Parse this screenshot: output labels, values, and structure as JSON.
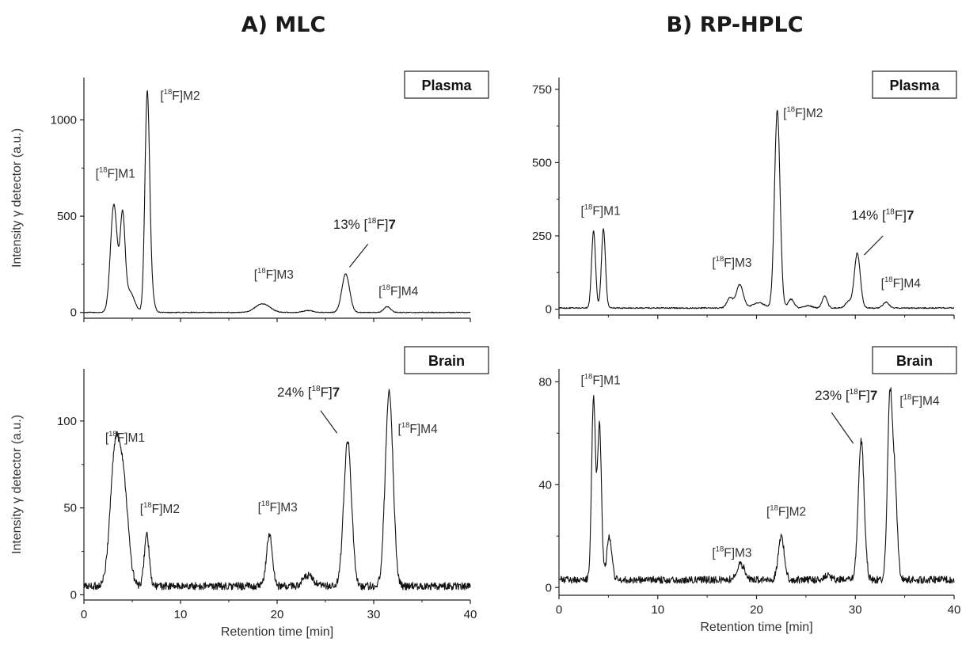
{
  "figure": {
    "column_titles": [
      "A) MLC",
      "B) RP-HPLC"
    ]
  },
  "chart_data": [
    {
      "type": "line",
      "column": "A) MLC",
      "panel_label": "Plasma",
      "xlabel": "",
      "ylabel": "Intensity γ detector (a.u.)",
      "xlim": [
        0,
        40
      ],
      "ylim": [
        -30,
        1220
      ],
      "xticks": [
        0,
        10,
        20,
        30,
        40
      ],
      "yticks": [
        0,
        500,
        1000
      ],
      "show_x_tick_labels": false,
      "baseline": 0,
      "noise": 2,
      "peaks": [
        [
          3.1,
          560,
          0.35
        ],
        [
          4.0,
          470,
          0.25
        ],
        [
          4.7,
          110,
          0.5
        ],
        [
          6.55,
          1090,
          0.24
        ],
        [
          6.9,
          120,
          0.3
        ],
        [
          18.5,
          45,
          0.75
        ],
        [
          23.2,
          10,
          0.5
        ],
        [
          27.1,
          200,
          0.4
        ],
        [
          31.4,
          30,
          0.35
        ]
      ],
      "annotations": [
        {
          "pre": "[",
          "sup": "18",
          "post": "F]M1",
          "x": 1.2,
          "y": 700
        },
        {
          "pre": "[",
          "sup": "18",
          "post": "F]M2",
          "x": 7.9,
          "y": 1105
        },
        {
          "pre": "[",
          "sup": "18",
          "post": "F]M3",
          "x": 17.6,
          "y": 175
        },
        {
          "pre": "[",
          "sup": "18",
          "post": "F]M4",
          "x": 30.5,
          "y": 90
        },
        {
          "pre": "13% [",
          "sup": "18",
          "post": "F]",
          "bold": "7",
          "x": 25.8,
          "y": 435,
          "pct": true,
          "line": [
            [
              27.5,
              235
            ],
            [
              29.4,
              355
            ]
          ]
        }
      ]
    },
    {
      "type": "line",
      "column": "A) MLC",
      "panel_label": "Brain",
      "xlabel": "Retention time [min]",
      "ylabel": "Intensity γ detector (a.u.)",
      "xlim": [
        0,
        40
      ],
      "ylim": [
        -3,
        130
      ],
      "xticks": [
        0,
        10,
        20,
        30,
        40
      ],
      "yticks": [
        0,
        50,
        100
      ],
      "show_x_tick_labels": true,
      "baseline": 5,
      "noise": 2.2,
      "peaks": [
        [
          3.2,
          72,
          0.5
        ],
        [
          4.1,
          55,
          0.5
        ],
        [
          6.5,
          30,
          0.25
        ],
        [
          19.2,
          30,
          0.3
        ],
        [
          23.2,
          6,
          0.5
        ],
        [
          27.3,
          84,
          0.4
        ],
        [
          31.6,
          113,
          0.4
        ]
      ],
      "annotations": [
        {
          "pre": "[",
          "sup": "18",
          "post": "F]M1",
          "x": 2.2,
          "y": 88
        },
        {
          "pre": "[",
          "sup": "18",
          "post": "F]M2",
          "x": 5.8,
          "y": 47
        },
        {
          "pre": "[",
          "sup": "18",
          "post": "F]M3",
          "x": 18.0,
          "y": 48
        },
        {
          "pre": "[",
          "sup": "18",
          "post": "F]M4",
          "x": 32.5,
          "y": 93
        },
        {
          "pre": "24% [",
          "sup": "18",
          "post": "F]",
          "bold": "7",
          "x": 20.0,
          "y": 114,
          "pct": true,
          "line": [
            [
              24.5,
              106
            ],
            [
              26.2,
              93
            ]
          ]
        }
      ]
    },
    {
      "type": "line",
      "column": "B) RP-HPLC",
      "panel_label": "Plasma",
      "xlabel": "",
      "ylabel": "",
      "xlim": [
        0,
        40
      ],
      "ylim": [
        -20,
        790
      ],
      "xticks": [
        0,
        10,
        20,
        30,
        40
      ],
      "yticks": [
        0,
        250,
        500,
        750
      ],
      "show_x_tick_labels": false,
      "baseline": 4,
      "noise": 2,
      "peaks": [
        [
          3.5,
          262,
          0.2
        ],
        [
          4.5,
          270,
          0.2
        ],
        [
          17.3,
          35,
          0.3
        ],
        [
          18.3,
          80,
          0.35
        ],
        [
          20.2,
          18,
          0.6
        ],
        [
          22.1,
          675,
          0.28
        ],
        [
          23.5,
          30,
          0.3
        ],
        [
          25.2,
          8,
          0.4
        ],
        [
          26.9,
          40,
          0.25
        ],
        [
          29.3,
          22,
          0.3
        ],
        [
          30.2,
          187,
          0.3
        ],
        [
          33.1,
          20,
          0.3
        ]
      ],
      "annotations": [
        {
          "pre": "[",
          "sup": "18",
          "post": "F]M1",
          "x": 2.2,
          "y": 322
        },
        {
          "pre": "[",
          "sup": "18",
          "post": "F]M2",
          "x": 22.7,
          "y": 655
        },
        {
          "pre": "[",
          "sup": "18",
          "post": "F]M3",
          "x": 15.5,
          "y": 145
        },
        {
          "pre": "[",
          "sup": "18",
          "post": "F]M4",
          "x": 32.6,
          "y": 75
        },
        {
          "pre": "14% [",
          "sup": "18",
          "post": "F]",
          "bold": "7",
          "x": 29.6,
          "y": 305,
          "pct": true,
          "line": [
            [
              30.9,
              185
            ],
            [
              32.8,
              250
            ]
          ]
        }
      ]
    },
    {
      "type": "line",
      "column": "B) RP-HPLC",
      "panel_label": "Brain",
      "xlabel": "Retention time [min]",
      "ylabel": "",
      "xlim": [
        0,
        40
      ],
      "ylim": [
        -3,
        85
      ],
      "xticks": [
        0,
        10,
        20,
        30,
        40
      ],
      "yticks": [
        0,
        40,
        80
      ],
      "show_x_tick_labels": true,
      "baseline": 3,
      "noise": 1.4,
      "peaks": [
        [
          3.5,
          70,
          0.2
        ],
        [
          4.1,
          60,
          0.2
        ],
        [
          5.1,
          17,
          0.25
        ],
        [
          18.4,
          6,
          0.4
        ],
        [
          22.5,
          17,
          0.3
        ],
        [
          27.2,
          2,
          0.3
        ],
        [
          30.6,
          54,
          0.3
        ],
        [
          33.5,
          69,
          0.25
        ],
        [
          34.0,
          35,
          0.25
        ]
      ],
      "annotations": [
        {
          "pre": "[",
          "sup": "18",
          "post": "F]M1",
          "x": 2.2,
          "y": 79
        },
        {
          "pre": "[",
          "sup": "18",
          "post": "F]M2",
          "x": 21.0,
          "y": 28
        },
        {
          "pre": "[",
          "sup": "18",
          "post": "F]M3",
          "x": 15.5,
          "y": 12
        },
        {
          "pre": "[",
          "sup": "18",
          "post": "F]M4",
          "x": 34.5,
          "y": 71
        },
        {
          "pre": "23% [",
          "sup": "18",
          "post": "F]",
          "bold": "7",
          "x": 25.9,
          "y": 73,
          "pct": true,
          "line": [
            [
              27.6,
              68
            ],
            [
              29.8,
              56
            ]
          ]
        }
      ]
    }
  ],
  "colors": {
    "trace": "#111111",
    "axis": "#222222",
    "text": "#333333"
  }
}
